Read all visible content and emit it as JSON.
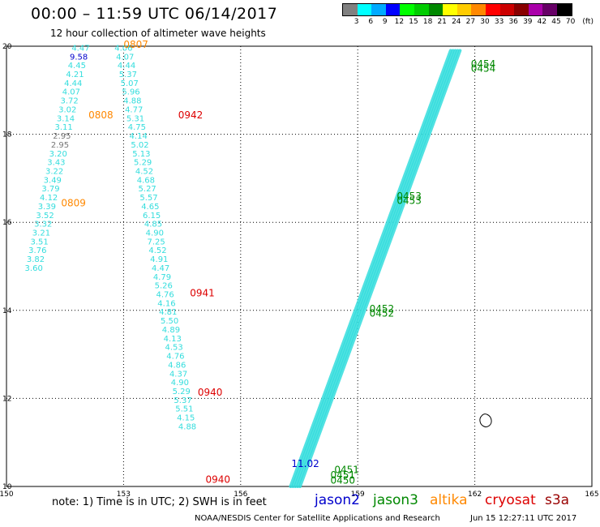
{
  "title": "00:00 – 11:59 UTC 06/14/2017",
  "subtitle": "12 hour collection of altimeter wave heights",
  "scale": {
    "colors": [
      "#808080",
      "#00ffff",
      "#00aaff",
      "#0000ff",
      "#00ff00",
      "#00cc00",
      "#008800",
      "#ffff00",
      "#ffcc00",
      "#ff8800",
      "#ff0000",
      "#cc0000",
      "#880000",
      "#aa00aa",
      "#660066",
      "#000000"
    ],
    "labels": [
      "3",
      "6",
      "9",
      "12",
      "15",
      "18",
      "21",
      "24",
      "27",
      "30",
      "33",
      "36",
      "39",
      "42",
      "45",
      "70",
      "(ft)"
    ]
  },
  "map": {
    "lon_range": [
      150,
      165
    ],
    "lat_range": [
      10,
      20
    ],
    "x_ticks": [
      "150",
      "153",
      "156",
      "159",
      "162",
      "165"
    ],
    "y_ticks": [
      "20",
      "18",
      "16",
      "14",
      "12",
      "10"
    ],
    "track_colors": {
      "cyan": "#33dddd",
      "jason2": "#0000cc",
      "jason3": "#008800",
      "altika": "#ff8800",
      "cryosat": "#dd0000",
      "grey": "#777777"
    },
    "track_a": [
      {
        "lat": 19.9,
        "v": "4.47"
      },
      {
        "lat": 19.7,
        "v": "9.58",
        "c": "jason2"
      },
      {
        "lat": 19.5,
        "v": "4.45"
      },
      {
        "lat": 19.3,
        "v": "4.21"
      },
      {
        "lat": 19.1,
        "v": "4.44"
      },
      {
        "lat": 18.9,
        "v": "4.07"
      },
      {
        "lat": 18.7,
        "v": "3.72"
      },
      {
        "lat": 18.5,
        "v": "3.02"
      },
      {
        "lat": 18.3,
        "v": "3.14"
      },
      {
        "lat": 18.1,
        "v": "3.11"
      },
      {
        "lat": 17.9,
        "v": "2.95",
        "c": "grey"
      },
      {
        "lat": 17.7,
        "v": "2.95",
        "c": "grey"
      },
      {
        "lat": 17.5,
        "v": "3.20"
      },
      {
        "lat": 17.3,
        "v": "3.43"
      },
      {
        "lat": 17.1,
        "v": "3.22"
      },
      {
        "lat": 16.9,
        "v": "3.49"
      },
      {
        "lat": 16.7,
        "v": "3.79"
      },
      {
        "lat": 16.5,
        "v": "4.12"
      },
      {
        "lat": 16.3,
        "v": "3.39"
      },
      {
        "lat": 16.1,
        "v": "3.52"
      },
      {
        "lat": 15.9,
        "v": "3.32"
      },
      {
        "lat": 15.7,
        "v": "3.21"
      },
      {
        "lat": 15.5,
        "v": "3.51"
      },
      {
        "lat": 15.3,
        "v": "3.76"
      },
      {
        "lat": 15.1,
        "v": "3.82"
      },
      {
        "lat": 14.9,
        "v": "3.60"
      }
    ],
    "track_b": [
      {
        "lat": 19.9,
        "v": "4.06"
      },
      {
        "lat": 19.7,
        "v": "4.07"
      },
      {
        "lat": 19.5,
        "v": "4.44"
      },
      {
        "lat": 19.3,
        "v": "5.37"
      },
      {
        "lat": 19.1,
        "v": "5.07"
      },
      {
        "lat": 18.9,
        "v": "5.96"
      },
      {
        "lat": 18.7,
        "v": "4.88"
      },
      {
        "lat": 18.5,
        "v": "4.77"
      },
      {
        "lat": 18.3,
        "v": "5.31"
      },
      {
        "lat": 18.1,
        "v": "4.75"
      },
      {
        "lat": 17.9,
        "v": "4.14"
      },
      {
        "lat": 17.7,
        "v": "5.02"
      },
      {
        "lat": 17.5,
        "v": "5.13"
      },
      {
        "lat": 17.3,
        "v": "5.29"
      },
      {
        "lat": 17.1,
        "v": "4.52"
      },
      {
        "lat": 16.9,
        "v": "4.68"
      },
      {
        "lat": 16.7,
        "v": "5.27"
      },
      {
        "lat": 16.5,
        "v": "5.57"
      },
      {
        "lat": 16.3,
        "v": "4.65"
      },
      {
        "lat": 16.1,
        "v": "6.15"
      },
      {
        "lat": 15.9,
        "v": "4.85"
      },
      {
        "lat": 15.7,
        "v": "4.90"
      },
      {
        "lat": 15.5,
        "v": "7.25"
      },
      {
        "lat": 15.3,
        "v": "4.52"
      },
      {
        "lat": 15.1,
        "v": "4.91"
      },
      {
        "lat": 14.9,
        "v": "4.47"
      },
      {
        "lat": 14.7,
        "v": "4.79"
      },
      {
        "lat": 14.5,
        "v": "5.26"
      },
      {
        "lat": 14.3,
        "v": "4.76"
      },
      {
        "lat": 14.1,
        "v": "4.16"
      },
      {
        "lat": 13.9,
        "v": "4.81"
      },
      {
        "lat": 13.7,
        "v": "5.50"
      },
      {
        "lat": 13.5,
        "v": "4.89"
      },
      {
        "lat": 13.3,
        "v": "4.13"
      },
      {
        "lat": 13.1,
        "v": "4.53"
      },
      {
        "lat": 12.9,
        "v": "4.76"
      },
      {
        "lat": 12.7,
        "v": "4.86"
      },
      {
        "lat": 12.5,
        "v": "4.37"
      },
      {
        "lat": 12.3,
        "v": "4.90"
      },
      {
        "lat": 12.1,
        "v": "5.29"
      },
      {
        "lat": 11.9,
        "v": "5.37"
      },
      {
        "lat": 11.7,
        "v": "5.51"
      },
      {
        "lat": 11.5,
        "v": "4.15"
      },
      {
        "lat": 11.3,
        "v": "4.88"
      }
    ],
    "time_labels": [
      {
        "lon": 153.0,
        "lat": 19.96,
        "t": "0807",
        "c": "altika"
      },
      {
        "lon": 152.1,
        "lat": 18.36,
        "t": "0808",
        "c": "altika"
      },
      {
        "lon": 151.4,
        "lat": 16.36,
        "t": "0809",
        "c": "altika"
      },
      {
        "lon": 154.4,
        "lat": 18.36,
        "t": "0942",
        "c": "cryosat"
      },
      {
        "lon": 154.7,
        "lat": 14.32,
        "t": "0941",
        "c": "cryosat"
      },
      {
        "lon": 154.9,
        "lat": 12.06,
        "t": "0940",
        "c": "cryosat"
      },
      {
        "lon": 155.1,
        "lat": 10.08,
        "t": "0940",
        "c": "cryosat"
      },
      {
        "lon": 161.9,
        "lat": 19.52,
        "t": "0454",
        "c": "jason3"
      },
      {
        "lon": 161.9,
        "lat": 19.42,
        "t": "0454",
        "c": "jason3"
      },
      {
        "lon": 160.0,
        "lat": 16.52,
        "t": "0453",
        "c": "jason3"
      },
      {
        "lon": 160.0,
        "lat": 16.42,
        "t": "0453",
        "c": "jason3"
      },
      {
        "lon": 159.3,
        "lat": 13.96,
        "t": "0452",
        "c": "jason3"
      },
      {
        "lon": 159.3,
        "lat": 13.86,
        "t": "0452",
        "c": "jason3"
      },
      {
        "lon": 158.4,
        "lat": 10.3,
        "t": "0451",
        "c": "jason3"
      },
      {
        "lon": 158.3,
        "lat": 10.18,
        "t": "0451",
        "c": "jason3"
      },
      {
        "lon": 158.3,
        "lat": 10.06,
        "t": "0450",
        "c": "jason3"
      },
      {
        "lon": 157.3,
        "lat": 10.44,
        "t": "11.02",
        "c": "jason2"
      }
    ]
  },
  "note": "note: 1) Time is in UTC; 2) SWH is in feet",
  "legend": [
    {
      "name": "jason2",
      "color": "#0000cc"
    },
    {
      "name": "jason3",
      "color": "#008800"
    },
    {
      "name": "altika",
      "color": "#ff8800"
    },
    {
      "name": "cryosat",
      "color": "#dd0000"
    },
    {
      "name": "s3a",
      "color": "#990000"
    }
  ],
  "credit": "NOAA/NESDIS Center for Satellite Applications and Research",
  "stamp": "Jun 15 12:27:11 UTC 2017"
}
